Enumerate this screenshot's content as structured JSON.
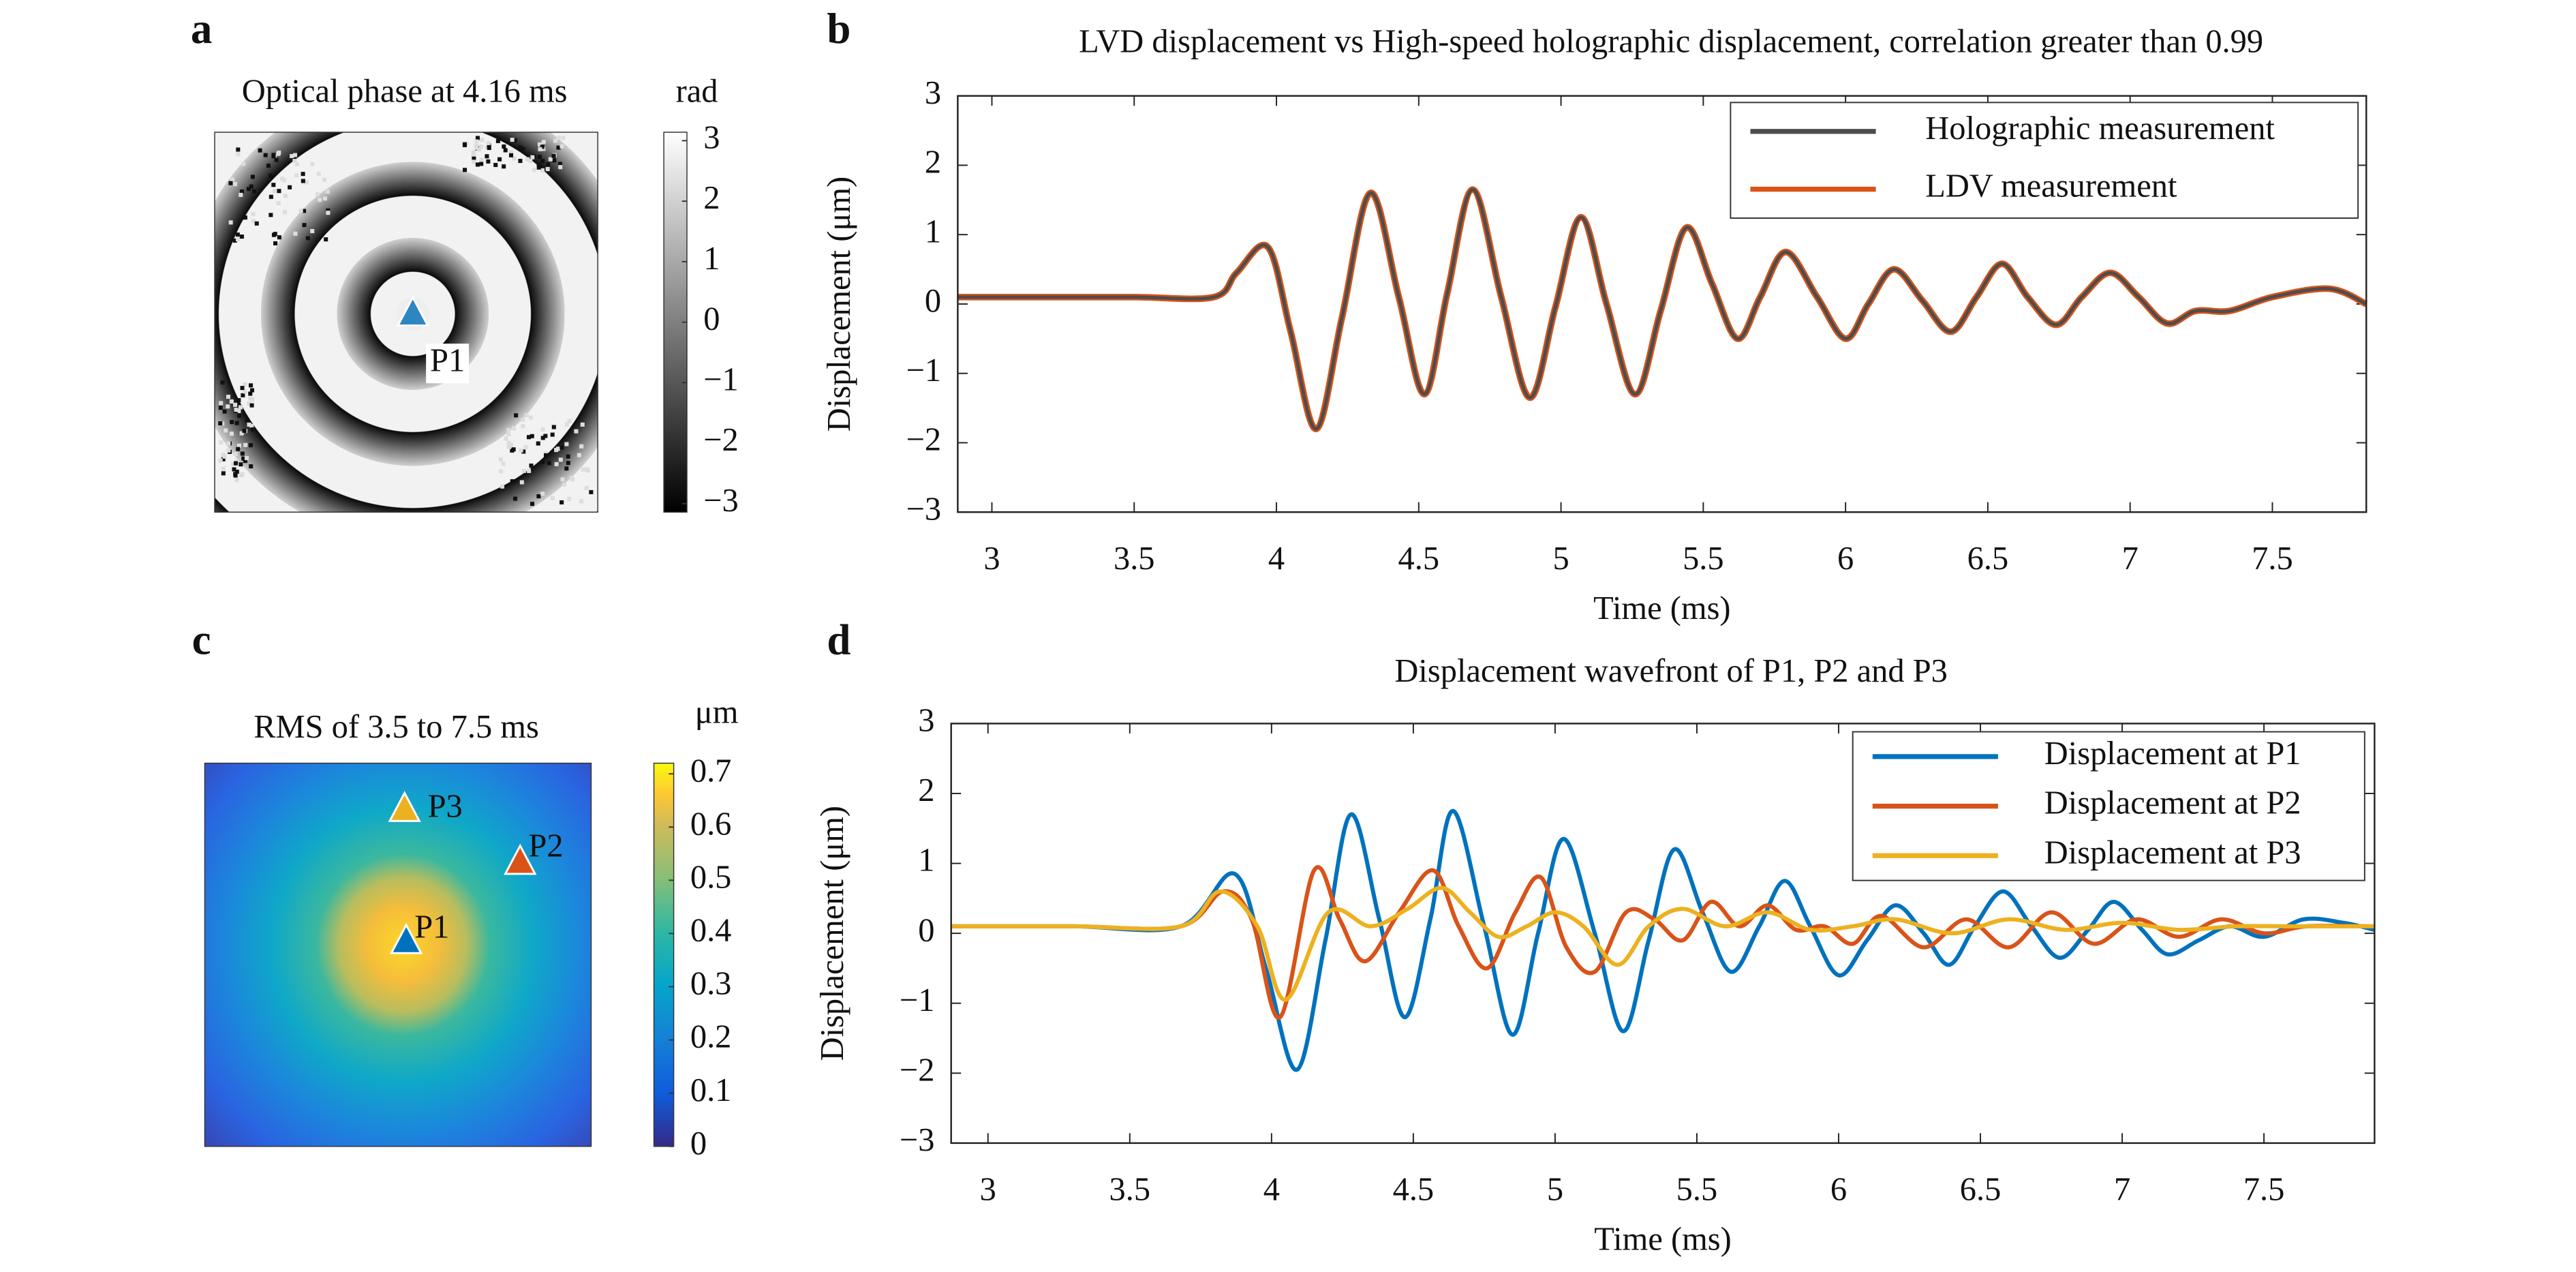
{
  "chart_data": [
    {
      "type": "image",
      "label": "a",
      "title": "Optical phase at 4.16 ms",
      "colormap": "gray",
      "clim": [
        -3.14,
        3.14
      ],
      "cbar_label": "rad",
      "cticks": [
        {
          "value": 3,
          "label": "3"
        },
        {
          "value": 2,
          "label": "2"
        },
        {
          "value": 1,
          "label": "1"
        },
        0,
        {
          "value": -1,
          "label": "−1"
        },
        {
          "value": -2,
          "label": "−2"
        },
        {
          "value": -3,
          "label": "−3"
        }
      ],
      "markers": [
        {
          "name": "P1",
          "color": "#2e86c1"
        }
      ]
    },
    {
      "type": "line",
      "label": "b",
      "title": "LVD displacement vs High-speed holographic displacement, correlation greater than 0.99",
      "xlabel": "Time (ms)",
      "ylabel": "Displacement (μm)",
      "xlim": [
        2.88,
        7.83
      ],
      "ylim": [
        -3,
        3
      ],
      "xticks": [
        3,
        3.5,
        4,
        4.5,
        5,
        5.5,
        6,
        6.5,
        7,
        7.5
      ],
      "yticks": [
        {
          "value": -3,
          "label": "−3"
        },
        {
          "value": -2,
          "label": "−2"
        },
        {
          "value": -1,
          "label": "−1"
        },
        0,
        1,
        2,
        3
      ],
      "legend": "northeast",
      "x": [
        2.88,
        3.2,
        3.5,
        3.78,
        3.86,
        3.97,
        4.05,
        4.14,
        4.23,
        4.33,
        4.43,
        4.52,
        4.6,
        4.69,
        4.79,
        4.89,
        4.98,
        5.07,
        5.16,
        5.26,
        5.35,
        5.44,
        5.53,
        5.62,
        5.7,
        5.79,
        5.9,
        6.0,
        6.08,
        6.17,
        6.27,
        6.37,
        6.46,
        6.55,
        6.64,
        6.74,
        6.83,
        6.93,
        7.03,
        7.13,
        7.23,
        7.35,
        7.5,
        7.7,
        7.83
      ],
      "series": [
        {
          "name": "Holographic measurement",
          "color": "#4d4d4d",
          "width": 2,
          "values": [
            0.1,
            0.1,
            0.1,
            0.1,
            0.45,
            0.82,
            -0.4,
            -1.8,
            -0.2,
            1.6,
            0.1,
            -1.3,
            0.15,
            1.65,
            0.1,
            -1.35,
            -0.05,
            1.25,
            0,
            -1.3,
            -0.1,
            1.1,
            0.3,
            -0.5,
            0.1,
            0.75,
            0.1,
            -0.5,
            0,
            0.5,
            0.05,
            -0.4,
            0.1,
            0.58,
            0.1,
            -0.3,
            0.1,
            0.45,
            0.1,
            -0.28,
            -0.1,
            -0.1,
            0.1,
            0.22,
            0.0
          ]
        },
        {
          "name": "LDV measurement",
          "color": "#d95319",
          "width": 4,
          "values": [
            0.1,
            0.1,
            0.1,
            0.1,
            0.45,
            0.82,
            -0.4,
            -1.8,
            -0.2,
            1.6,
            0.1,
            -1.3,
            0.15,
            1.65,
            0.1,
            -1.35,
            -0.05,
            1.25,
            0,
            -1.3,
            -0.1,
            1.1,
            0.3,
            -0.5,
            0.1,
            0.75,
            0.1,
            -0.5,
            0,
            0.5,
            0.05,
            -0.4,
            0.1,
            0.58,
            0.1,
            -0.3,
            0.1,
            0.45,
            0.1,
            -0.28,
            -0.1,
            -0.1,
            0.1,
            0.22,
            0.0
          ]
        }
      ]
    },
    {
      "type": "image",
      "label": "c",
      "title": "RMS of 3.5 to 7.5 ms",
      "colormap": "parula",
      "clim": [
        0,
        0.72
      ],
      "cbar_label": "μm",
      "cticks": [
        0,
        0.1,
        0.2,
        0.3,
        0.4,
        0.5,
        0.6,
        0.7
      ],
      "markers": [
        {
          "name": "P3",
          "color": "#edb120"
        },
        {
          "name": "P2",
          "color": "#d95319"
        },
        {
          "name": "P1",
          "color": "#0072bd"
        }
      ]
    },
    {
      "type": "line",
      "label": "d",
      "title": "Displacement wavefront of P1, P2 and P3",
      "xlabel": "Time (ms)",
      "ylabel": "Displacement (μm)",
      "xlim": [
        2.87,
        7.89
      ],
      "ylim": [
        -3,
        3
      ],
      "xticks": [
        3,
        3.5,
        4,
        4.5,
        5,
        5.5,
        6,
        6.5,
        7,
        7.5
      ],
      "yticks": [
        {
          "value": -3,
          "label": "−3"
        },
        {
          "value": -2,
          "label": "−2"
        },
        {
          "value": -1,
          "label": "−1"
        },
        0,
        1,
        2,
        3
      ],
      "legend": "northeast",
      "series": [
        {
          "name": "Displacement at P1",
          "color": "#0072bd",
          "width": 2.5,
          "x": [
            2.87,
            3.3,
            3.68,
            3.87,
            3.98,
            4.09,
            4.19,
            4.28,
            4.38,
            4.47,
            4.56,
            4.64,
            4.75,
            4.85,
            4.94,
            5.03,
            5.14,
            5.24,
            5.33,
            5.42,
            5.52,
            5.62,
            5.72,
            5.81,
            5.9,
            6.0,
            6.1,
            6.2,
            6.3,
            6.39,
            6.48,
            6.58,
            6.68,
            6.78,
            6.88,
            6.97,
            7.07,
            7.16,
            7.27,
            7.38,
            7.5,
            7.64,
            7.78,
            7.89
          ],
          "values": [
            0.1,
            0.1,
            0.1,
            0.85,
            -0.5,
            -1.95,
            -0.1,
            1.7,
            0.2,
            -1.2,
            0.2,
            1.75,
            0.1,
            -1.45,
            0,
            1.35,
            0,
            -1.4,
            -0.1,
            1.2,
            0.3,
            -0.55,
            0.1,
            0.75,
            0.1,
            -0.6,
            -0.1,
            0.4,
            0,
            -0.45,
            0.1,
            0.6,
            0.1,
            -0.35,
            0.05,
            0.45,
            0.05,
            -0.3,
            -0.1,
            0.1,
            -0.05,
            0.2,
            0.15,
            0.05
          ]
        },
        {
          "name": "Displacement at P2",
          "color": "#d95319",
          "width": 2.5,
          "x": [
            2.87,
            3.3,
            3.68,
            3.83,
            3.93,
            4.03,
            4.15,
            4.24,
            4.33,
            4.45,
            4.57,
            4.66,
            4.76,
            4.86,
            4.95,
            5.04,
            5.14,
            5.25,
            5.35,
            5.45,
            5.55,
            5.65,
            5.75,
            5.85,
            5.95,
            6.05,
            6.15,
            6.3,
            6.45,
            6.6,
            6.75,
            6.9,
            7.05,
            7.2,
            7.35,
            7.5,
            7.65,
            7.89
          ],
          "values": [
            0.1,
            0.1,
            0.1,
            0.6,
            0.2,
            -1.2,
            0.9,
            0.2,
            -0.4,
            0.3,
            0.9,
            0.1,
            -0.5,
            0.3,
            0.8,
            -0.2,
            -0.55,
            0.3,
            0.2,
            -0.1,
            0.45,
            0.1,
            0.4,
            0.05,
            0.1,
            -0.15,
            0.25,
            -0.2,
            0.2,
            -0.2,
            0.3,
            -0.15,
            0.2,
            -0.05,
            0.2,
            0.0,
            0.1,
            0.1
          ]
        },
        {
          "name": "Displacement at P3",
          "color": "#edb120",
          "width": 2.5,
          "x": [
            2.87,
            3.3,
            3.68,
            3.82,
            3.95,
            4.05,
            4.2,
            4.35,
            4.48,
            4.6,
            4.7,
            4.8,
            4.9,
            5.0,
            5.1,
            5.22,
            5.33,
            5.45,
            5.6,
            5.75,
            5.9,
            6.05,
            6.2,
            6.4,
            6.6,
            6.8,
            7.0,
            7.2,
            7.4,
            7.6,
            7.89
          ],
          "values": [
            0.1,
            0.1,
            0.1,
            0.6,
            0.1,
            -0.95,
            0.3,
            0.1,
            0.35,
            0.65,
            0.3,
            -0.05,
            0.1,
            0.3,
            0.1,
            -0.45,
            0.1,
            0.35,
            0.1,
            0.3,
            0.05,
            0.1,
            0.2,
            0,
            0.2,
            0.05,
            0.15,
            0.05,
            0.1,
            0.1,
            0.1
          ]
        }
      ]
    }
  ]
}
